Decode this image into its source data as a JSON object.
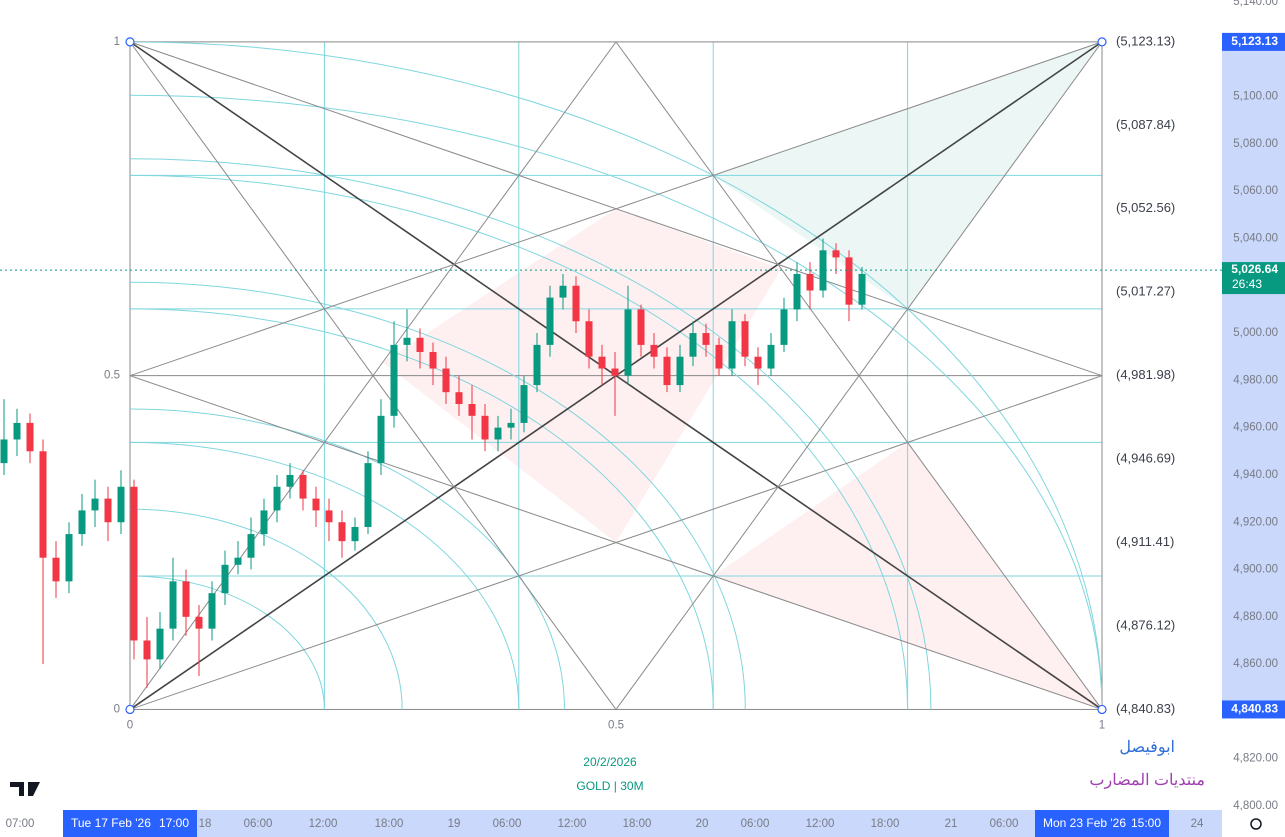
{
  "price_axis": {
    "ticks": [
      {
        "value": 5140,
        "label": "5,140.00"
      },
      {
        "value": 5100,
        "label": "5,100.00"
      },
      {
        "value": 5080,
        "label": "5,080.00"
      },
      {
        "value": 5060,
        "label": "5,060.00"
      },
      {
        "value": 5040,
        "label": "5,040.00"
      },
      {
        "value": 5000,
        "label": "5,000.00"
      },
      {
        "value": 4980,
        "label": "4,980.00"
      },
      {
        "value": 4960,
        "label": "4,960.00"
      },
      {
        "value": 4940,
        "label": "4,940.00"
      },
      {
        "value": 4920,
        "label": "4,920.00"
      },
      {
        "value": 4900,
        "label": "4,900.00"
      },
      {
        "value": 4880,
        "label": "4,880.00"
      },
      {
        "value": 4860,
        "label": "4,860.00"
      },
      {
        "value": 4820,
        "label": "4,820.00"
      },
      {
        "value": 4800,
        "label": "4,800.00"
      }
    ]
  },
  "range_badges": [
    {
      "value": 5123.13,
      "label": "5,123.13"
    },
    {
      "value": 4840.83,
      "label": "4,840.83"
    }
  ],
  "current_price": {
    "value": 5026.64,
    "label": "5,026.64",
    "countdown": "26:43"
  },
  "time_axis": {
    "labels": [
      "07:00",
      "18",
      "06:00",
      "12:00",
      "18:00",
      "19",
      "06:00",
      "12:00",
      "18:00",
      "20",
      "06:00",
      "12:00",
      "18:00",
      "21",
      "06:00",
      "24"
    ],
    "range_start": {
      "date": "Tue 17 Feb '26",
      "time": "17:00"
    },
    "range_end": {
      "date": "Mon 23 Feb '26",
      "time": "15:00"
    }
  },
  "gann_box": {
    "levels": [
      {
        "value": 5123.13,
        "label": "(5,123.13)"
      },
      {
        "value": 5087.84,
        "label": "(5,087.84)"
      },
      {
        "value": 5052.56,
        "label": "(5,052.56)"
      },
      {
        "value": 5017.27,
        "label": "(5,017.27)"
      },
      {
        "value": 4981.98,
        "label": "(4,981.98)"
      },
      {
        "value": 4946.69,
        "label": "(4,946.69)"
      },
      {
        "value": 4911.41,
        "label": "(4,911.41)"
      },
      {
        "value": 4876.12,
        "label": "(4,876.12)"
      },
      {
        "value": 4840.83,
        "label": "(4,840.83)"
      }
    ],
    "left_labels": [
      "1",
      "0.5",
      "0"
    ],
    "bottom_labels": [
      "0",
      "0.5",
      "1"
    ]
  },
  "caption": {
    "date": "20/2/2026",
    "symbol": "GOLD | 30M"
  },
  "watermark": {
    "name": "ابوفيصل",
    "forum": "منتديات المضارب"
  },
  "candles": [
    [
      4945,
      4972,
      4940,
      4955
    ],
    [
      4955,
      4968,
      4948,
      4962
    ],
    [
      4962,
      4966,
      4945,
      4950
    ],
    [
      4950,
      4955,
      4860,
      4905
    ],
    [
      4905,
      4912,
      4888,
      4895
    ],
    [
      4895,
      4920,
      4890,
      4915
    ],
    [
      4915,
      4932,
      4910,
      4925
    ],
    [
      4925,
      4938,
      4918,
      4930
    ],
    [
      4930,
      4935,
      4912,
      4920
    ],
    [
      4920,
      4942,
      4915,
      4935
    ],
    [
      4935,
      4938,
      4862,
      4870
    ],
    [
      4870,
      4880,
      4850,
      4862
    ],
    [
      4862,
      4882,
      4858,
      4875
    ],
    [
      4875,
      4905,
      4870,
      4895
    ],
    [
      4895,
      4900,
      4872,
      4880
    ],
    [
      4880,
      4885,
      4855,
      4875
    ],
    [
      4875,
      4895,
      4870,
      4890
    ],
    [
      4890,
      4908,
      4885,
      4902
    ],
    [
      4902,
      4912,
      4898,
      4905
    ],
    [
      4905,
      4922,
      4900,
      4915
    ],
    [
      4915,
      4930,
      4910,
      4925
    ],
    [
      4925,
      4940,
      4920,
      4935
    ],
    [
      4935,
      4945,
      4930,
      4940
    ],
    [
      4940,
      4942,
      4925,
      4930
    ],
    [
      4930,
      4935,
      4918,
      4925
    ],
    [
      4925,
      4930,
      4912,
      4920
    ],
    [
      4920,
      4925,
      4905,
      4912
    ],
    [
      4912,
      4922,
      4908,
      4918
    ],
    [
      4918,
      4950,
      4915,
      4945
    ],
    [
      4945,
      4972,
      4940,
      4965
    ],
    [
      4965,
      5005,
      4960,
      4995
    ],
    [
      4995,
      5010,
      4988,
      4998
    ],
    [
      4998,
      5002,
      4985,
      4992
    ],
    [
      4992,
      4996,
      4978,
      4985
    ],
    [
      4985,
      4990,
      4970,
      4975
    ],
    [
      4975,
      4982,
      4965,
      4970
    ],
    [
      4970,
      4978,
      4955,
      4965
    ],
    [
      4965,
      4970,
      4950,
      4955
    ],
    [
      4955,
      4965,
      4950,
      4960
    ],
    [
      4960,
      4968,
      4955,
      4962
    ],
    [
      4962,
      4982,
      4958,
      4978
    ],
    [
      4978,
      5000,
      4975,
      4995
    ],
    [
      4995,
      5020,
      4990,
      5015
    ],
    [
      5015,
      5025,
      5010,
      5020
    ],
    [
      5020,
      5024,
      5000,
      5005
    ],
    [
      5005,
      5010,
      4985,
      4990
    ],
    [
      4990,
      4995,
      4978,
      4985
    ],
    [
      4985,
      4992,
      4965,
      4982
    ],
    [
      4982,
      5020,
      4978,
      5010
    ],
    [
      5010,
      5012,
      4990,
      4995
    ],
    [
      4995,
      5000,
      4985,
      4990
    ],
    [
      4990,
      4994,
      4975,
      4978
    ],
    [
      4978,
      4995,
      4975,
      4990
    ],
    [
      4990,
      5005,
      4986,
      5000
    ],
    [
      5000,
      5004,
      4990,
      4995
    ],
    [
      4995,
      4998,
      4982,
      4985
    ],
    [
      4985,
      5010,
      4982,
      5005
    ],
    [
      5005,
      5008,
      4986,
      4990
    ],
    [
      4990,
      4994,
      4978,
      4985
    ],
    [
      4985,
      5000,
      4982,
      4995
    ],
    [
      4995,
      5015,
      4992,
      5010
    ],
    [
      5010,
      5030,
      5005,
      5025
    ],
    [
      5025,
      5030,
      5010,
      5018
    ],
    [
      5018,
      5040,
      5015,
      5035
    ],
    [
      5035,
      5038,
      5025,
      5032
    ],
    [
      5032,
      5035,
      5005,
      5012
    ],
    [
      5012,
      5028,
      5010,
      5025
    ]
  ]
}
